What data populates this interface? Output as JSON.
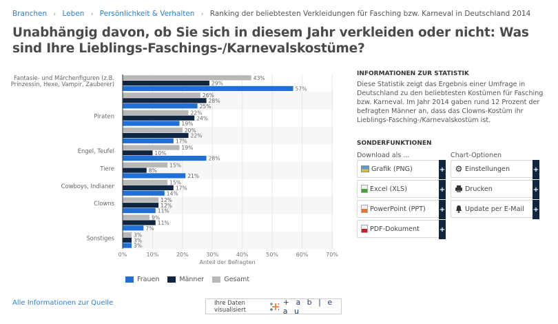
{
  "breadcrumb": {
    "items": [
      "Branchen",
      "Leben",
      "Persönlichkeit & Verhalten"
    ],
    "separator": "›",
    "current": "Ranking der beliebtesten Verkleidungen für Fasching bzw. Karneval in Deutschland 2014"
  },
  "title": "Unabhängig davon, ob Sie sich in diesem Jahr verkleiden oder nicht: Was sind Ihre Lieblings-Faschings-/Karnevalskostüme?",
  "chart_data": {
    "type": "bar",
    "orientation": "horizontal",
    "categories": [
      "Fantasie- und Märchenfiguren (z.B. Prinzessin, Hexe, Vampir, Zauberer)",
      "",
      "Piraten",
      "",
      "Engel, Teufel",
      "Tiere",
      "Cowboys, Indianer",
      "Clowns",
      "",
      "Sonstiges"
    ],
    "series": [
      {
        "name": "Gesamt",
        "color": "#b8b8b8",
        "values": [
          43,
          26,
          22,
          20,
          19,
          15,
          15,
          12,
          9,
          3
        ]
      },
      {
        "name": "Männer",
        "color": "#0f2540",
        "values": [
          29,
          28,
          24,
          22,
          10,
          8,
          17,
          12,
          11,
          3
        ]
      },
      {
        "name": "Frauen",
        "color": "#1f6fd6",
        "values": [
          57,
          25,
          19,
          17,
          28,
          21,
          14,
          11,
          7,
          3
        ]
      }
    ],
    "xlabel": "Anteil der Befragten",
    "ylabel": "",
    "xlim": [
      0,
      70
    ],
    "xticks": [
      0,
      10,
      20,
      30,
      40,
      50,
      60,
      70
    ],
    "tick_suffix": "%",
    "grid": true,
    "legend": {
      "position": "bottom-left",
      "entries": [
        {
          "name": "Frauen",
          "color": "#1f6fd6"
        },
        {
          "name": "Männer",
          "color": "#0f2540"
        },
        {
          "name": "Gesamt",
          "color": "#b8b8b8"
        }
      ]
    }
  },
  "source_link": "Alle Informationen zur Quelle",
  "tableau": {
    "text": "Ihre Daten visualisiert",
    "logo": "+ a b | e a u"
  },
  "info": {
    "heading": "INFORMATIONEN ZUR STATISTIK",
    "text": "Diese Statistik zeigt das Ergebnis einer Umfrage in Deutschland zu den beliebtesten Kostümen für Fasching bzw. Karneval. Im Jahr 2014 gaben rund 12 Prozent der befragten Männer an, dass das Clowns-Kostüm ihr Lieblings-Fasching-/Karnevalskostüm ist."
  },
  "sonder": {
    "heading": "SONDERFUNKTIONEN",
    "download_label": "Download als ...",
    "options_label": "Chart-Optionen",
    "download_buttons": [
      {
        "label": "Grafik (PNG)",
        "icon": "image-file-icon"
      },
      {
        "label": "Excel (XLS)",
        "icon": "excel-file-icon"
      },
      {
        "label": "PowerPoint (PPT)",
        "icon": "powerpoint-file-icon"
      },
      {
        "label": "PDF-Dokument",
        "icon": "pdf-file-icon"
      }
    ],
    "option_buttons": [
      {
        "label": "Einstellungen",
        "icon": "gear-icon"
      },
      {
        "label": "Drucken",
        "icon": "printer-icon"
      },
      {
        "label": "Update per E-Mail",
        "icon": "bell-icon"
      }
    ],
    "plus": "+"
  }
}
